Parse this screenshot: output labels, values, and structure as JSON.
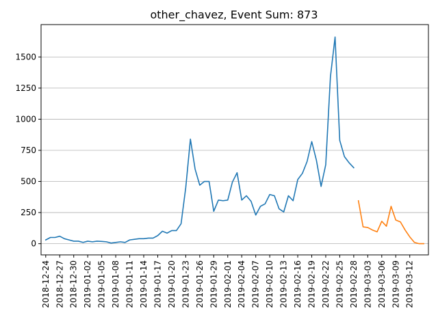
{
  "chart_data": {
    "type": "line",
    "title": "other_chavez, Event Sum: 873",
    "xlabel": "",
    "ylabel": "",
    "x_start": "2018-12-24",
    "x_end": "2019-03-15",
    "xlim": [
      "2018-12-23",
      "2019-03-16"
    ],
    "ylim": [
      -90,
      1760
    ],
    "yticks": [
      0,
      250,
      500,
      750,
      1000,
      1250,
      1500
    ],
    "xtick_labels": [
      "2018-12-24",
      "2018-12-27",
      "2018-12-30",
      "2019-01-02",
      "2019-01-05",
      "2019-01-08",
      "2019-01-11",
      "2019-01-14",
      "2019-01-17",
      "2019-01-20",
      "2019-01-23",
      "2019-01-26",
      "2019-01-29",
      "2019-02-01",
      "2019-02-04",
      "2019-02-07",
      "2019-02-10",
      "2019-02-13",
      "2019-02-16",
      "2019-02-19",
      "2019-02-22",
      "2019-02-25",
      "2019-02-28",
      "2019-03-03",
      "2019-03-06",
      "2019-03-09",
      "2019-03-12"
    ],
    "grid": "horizontal",
    "series": [
      {
        "color": "#1f77b4",
        "x": [
          "2018-12-24",
          "2018-12-25",
          "2018-12-26",
          "2018-12-27",
          "2018-12-28",
          "2018-12-29",
          "2018-12-30",
          "2018-12-31",
          "2019-01-01",
          "2019-01-02",
          "2019-01-03",
          "2019-01-04",
          "2019-01-05",
          "2019-01-06",
          "2019-01-07",
          "2019-01-08",
          "2019-01-09",
          "2019-01-10",
          "2019-01-11",
          "2019-01-12",
          "2019-01-13",
          "2019-01-14",
          "2019-01-15",
          "2019-01-16",
          "2019-01-17",
          "2019-01-18",
          "2019-01-19",
          "2019-01-20",
          "2019-01-21",
          "2019-01-22",
          "2019-01-23",
          "2019-01-24",
          "2019-01-25",
          "2019-01-26",
          "2019-01-27",
          "2019-01-28",
          "2019-01-29",
          "2019-01-30",
          "2019-01-31",
          "2019-02-01",
          "2019-02-02",
          "2019-02-03",
          "2019-02-04",
          "2019-02-05",
          "2019-02-06",
          "2019-02-07",
          "2019-02-08",
          "2019-02-09",
          "2019-02-10",
          "2019-02-11",
          "2019-02-12",
          "2019-02-13",
          "2019-02-14",
          "2019-02-15",
          "2019-02-16",
          "2019-02-17",
          "2019-02-18",
          "2019-02-19",
          "2019-02-20",
          "2019-02-21",
          "2019-02-22",
          "2019-02-23",
          "2019-02-24",
          "2019-02-25",
          "2019-02-26",
          "2019-02-27",
          "2019-02-28"
        ],
        "values": [
          30,
          50,
          50,
          60,
          40,
          30,
          20,
          20,
          10,
          20,
          15,
          20,
          18,
          15,
          5,
          10,
          15,
          10,
          30,
          35,
          40,
          40,
          45,
          45,
          65,
          100,
          85,
          105,
          105,
          160,
          450,
          840,
          600,
          470,
          500,
          500,
          260,
          350,
          345,
          350,
          495,
          570,
          350,
          385,
          340,
          230,
          300,
          320,
          395,
          385,
          280,
          255,
          385,
          345,
          515,
          565,
          660,
          820,
          670,
          460,
          635,
          1340,
          1660,
          830,
          700,
          650,
          610
        ]
      },
      {
        "color": "#ff7f0e",
        "x": [
          "2019-03-01",
          "2019-03-02",
          "2019-03-03",
          "2019-03-04",
          "2019-03-05",
          "2019-03-06",
          "2019-03-07",
          "2019-03-08",
          "2019-03-09",
          "2019-03-10",
          "2019-03-11",
          "2019-03-12",
          "2019-03-13",
          "2019-03-14",
          "2019-03-15"
        ],
        "values": [
          345,
          135,
          130,
          110,
          95,
          180,
          140,
          300,
          190,
          175,
          110,
          55,
          10,
          0,
          0
        ]
      }
    ]
  }
}
